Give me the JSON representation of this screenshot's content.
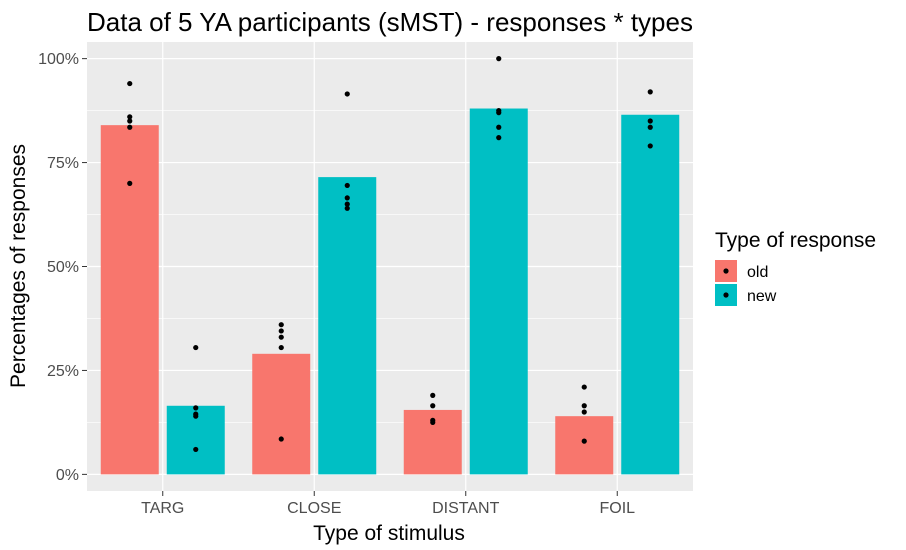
{
  "chart_data": {
    "type": "bar",
    "title": "Data of 5 YA participants (sMST) - responses * types",
    "xlabel": "Type of stimulus",
    "ylabel": "Percentages of responses",
    "categories": [
      "TARG",
      "CLOSE",
      "DISTANT",
      "FOIL"
    ],
    "ylim": [
      -0.04,
      1.04
    ],
    "yticks": [
      0,
      0.25,
      0.5,
      0.75,
      1.0
    ],
    "ytick_labels": [
      "0%",
      "25%",
      "50%",
      "75%",
      "100%"
    ],
    "grid": true,
    "legend": {
      "title": "Type of response",
      "placement": "right"
    },
    "series": [
      {
        "name": "old",
        "color": "#F8766D",
        "values": [
          0.84,
          0.29,
          0.155,
          0.14
        ],
        "points": [
          [
            0.94,
            0.86,
            0.85,
            0.835,
            0.7
          ],
          [
            0.36,
            0.345,
            0.33,
            0.305,
            0.085
          ],
          [
            0.19,
            0.165,
            0.13,
            0.125
          ],
          [
            0.21,
            0.165,
            0.15,
            0.08
          ]
        ]
      },
      {
        "name": "new",
        "color": "#00BFC4",
        "values": [
          0.165,
          0.715,
          0.88,
          0.865
        ],
        "points": [
          [
            0.305,
            0.16,
            0.145,
            0.14,
            0.06
          ],
          [
            0.915,
            0.695,
            0.665,
            0.65,
            0.64
          ],
          [
            1.0,
            0.875,
            0.87,
            0.835,
            0.81
          ],
          [
            0.92,
            0.85,
            0.835,
            0.79
          ]
        ]
      }
    ]
  }
}
